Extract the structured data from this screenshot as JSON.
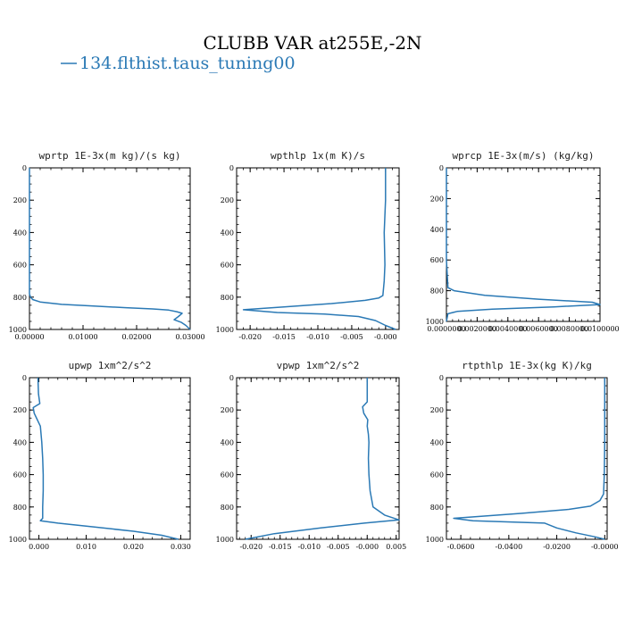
{
  "figure": {
    "title": "CLUBB VAR at255E,-2N",
    "legend_label": "134.flthist.taus_tuning00",
    "line_color": "#2a79b5"
  },
  "chart_data": [
    {
      "type": "line",
      "title": "wprtp  1E-3x(m kg)/(s kg)",
      "xlim": [
        0.0,
        0.03
      ],
      "ylim": [
        1000,
        0
      ],
      "x_ticks": [
        0.0,
        0.01,
        0.02,
        0.03
      ],
      "x_tick_labels": [
        "0.00000",
        "0.01000",
        "0.02000",
        "0.03000"
      ],
      "y_ticks": [
        0,
        200,
        400,
        600,
        800,
        1000
      ],
      "y_tick_labels": [
        "0",
        "200",
        "400",
        "600",
        "800",
        "1000"
      ],
      "series": [
        {
          "x": [
            0.0,
            0.0,
            0.0,
            0.0,
            0.0,
            0.0002,
            0.0006,
            0.002,
            0.006,
            0.012,
            0.018,
            0.023,
            0.026,
            0.0275,
            0.0285,
            0.0278,
            0.027,
            0.0283,
            0.0292,
            0.03
          ],
          "y": [
            0,
            200,
            400,
            600,
            780,
            800,
            815,
            830,
            845,
            855,
            865,
            873,
            880,
            890,
            900,
            920,
            940,
            955,
            975,
            1000
          ]
        }
      ]
    },
    {
      "type": "line",
      "title": "wpthlp  1x(m K)/s",
      "xlim": [
        -0.022,
        0.002
      ],
      "ylim": [
        1000,
        0
      ],
      "x_ticks": [
        -0.02,
        -0.015,
        -0.01,
        -0.005,
        0.0
      ],
      "x_tick_labels": [
        "-0.020",
        "-0.015",
        "-0.010",
        "-0.005",
        "-0.000"
      ],
      "y_ticks": [
        0,
        200,
        400,
        600,
        800,
        1000
      ],
      "y_tick_labels": [
        "0",
        "200",
        "400",
        "600",
        "800",
        "1000"
      ],
      "series": [
        {
          "x": [
            0.0,
            0.0,
            -0.0002,
            -0.0001,
            -0.0002,
            -0.0004,
            -0.001,
            -0.003,
            -0.008,
            -0.015,
            -0.021,
            -0.016,
            -0.009,
            -0.004,
            -0.0015,
            0.0,
            0.0015
          ],
          "y": [
            0,
            200,
            400,
            600,
            700,
            790,
            805,
            820,
            840,
            860,
            878,
            895,
            905,
            920,
            945,
            975,
            1000
          ]
        }
      ]
    },
    {
      "type": "line",
      "title": "wprcp  1E-3x(m/s) (kg/kg)",
      "xlim": [
        0.0,
        0.01
      ],
      "ylim": [
        1000,
        0
      ],
      "x_ticks": [
        0.0,
        0.002,
        0.004,
        0.006,
        0.008,
        0.01
      ],
      "x_tick_labels": [
        "0.0000000",
        "0.0020000",
        "0.0040000",
        "0.0060000",
        "0.0080000",
        "0.0100000"
      ],
      "y_ticks": [
        0,
        200,
        400,
        600,
        800,
        1000
      ],
      "y_tick_labels": [
        "0",
        "200",
        "400",
        "600",
        "800",
        "1000"
      ],
      "series": [
        {
          "x": [
            0.0,
            0.0,
            0.0,
            0.0,
            0.0001,
            0.0005,
            0.0025,
            0.006,
            0.0095,
            0.01,
            0.007,
            0.003,
            0.0007,
            0.0001,
            0.0
          ],
          "y": [
            0,
            200,
            400,
            600,
            780,
            800,
            830,
            855,
            875,
            890,
            905,
            920,
            935,
            950,
            1000
          ]
        }
      ]
    },
    {
      "type": "line",
      "title": "upwp  1xm^2/s^2",
      "xlim": [
        -0.002,
        0.032
      ],
      "ylim": [
        1000,
        0
      ],
      "x_ticks": [
        0.0,
        0.01,
        0.02,
        0.03
      ],
      "x_tick_labels": [
        "0.000",
        "0.010",
        "0.020",
        "0.030"
      ],
      "y_ticks": [
        0,
        200,
        400,
        600,
        800,
        1000
      ],
      "y_tick_labels": [
        "0",
        "200",
        "400",
        "600",
        "800",
        "1000"
      ],
      "series": [
        {
          "x": [
            -0.0002,
            -0.0001,
            0.0002,
            -0.0012,
            -0.001,
            0.0003,
            0.0006,
            0.0008,
            0.0009,
            0.0009,
            0.0008,
            0.0008,
            0.0003,
            0.004,
            0.012,
            0.02,
            0.026,
            0.0295
          ],
          "y": [
            0,
            100,
            160,
            185,
            220,
            300,
            400,
            500,
            600,
            700,
            800,
            870,
            885,
            900,
            925,
            950,
            975,
            1000
          ]
        }
      ]
    },
    {
      "type": "line",
      "title": "vpwp  1xm^2/s^2",
      "xlim": [
        -0.0225,
        0.0055
      ],
      "ylim": [
        1000,
        0
      ],
      "x_ticks": [
        -0.02,
        -0.015,
        -0.01,
        -0.005,
        0.0,
        0.005
      ],
      "x_tick_labels": [
        "-0.020",
        "-0.015",
        "-0.010",
        "-0.005",
        "-0.000",
        "0.005"
      ],
      "y_ticks": [
        0,
        200,
        400,
        600,
        800,
        1000
      ],
      "y_tick_labels": [
        "0",
        "200",
        "400",
        "600",
        "800",
        "1000"
      ],
      "series": [
        {
          "x": [
            0.0,
            0.0,
            0.0,
            -0.0008,
            -0.0006,
            0.0001,
            0.0,
            0.0002,
            0.0003,
            0.0002,
            0.0003,
            0.0005,
            0.001,
            0.003,
            0.0055,
            -0.0005,
            -0.008,
            -0.016,
            -0.021
          ],
          "y": [
            0,
            100,
            150,
            180,
            220,
            260,
            300,
            350,
            400,
            500,
            600,
            700,
            800,
            850,
            880,
            900,
            930,
            965,
            1000
          ]
        }
      ]
    },
    {
      "type": "line",
      "title": "rtpthlp  1E-3x(kg K)/kg",
      "xlim": [
        -0.066,
        0.001
      ],
      "ylim": [
        1000,
        0
      ],
      "x_ticks": [
        -0.06,
        -0.04,
        -0.02,
        0.0
      ],
      "x_tick_labels": [
        "-0.0600",
        "-0.0400",
        "-0.0200",
        "-0.0000"
      ],
      "y_ticks": [
        0,
        200,
        400,
        600,
        800,
        1000
      ],
      "y_tick_labels": [
        "0",
        "200",
        "400",
        "600",
        "800",
        "1000"
      ],
      "series": [
        {
          "x": [
            0.0,
            0.0,
            0.0,
            -0.0002,
            -0.0005,
            -0.002,
            -0.006,
            -0.015,
            -0.035,
            -0.063,
            -0.055,
            -0.025,
            -0.02,
            -0.012,
            -0.004,
            0.0
          ],
          "y": [
            0,
            200,
            400,
            600,
            720,
            760,
            795,
            815,
            840,
            870,
            885,
            900,
            930,
            960,
            985,
            1000
          ]
        }
      ]
    }
  ]
}
